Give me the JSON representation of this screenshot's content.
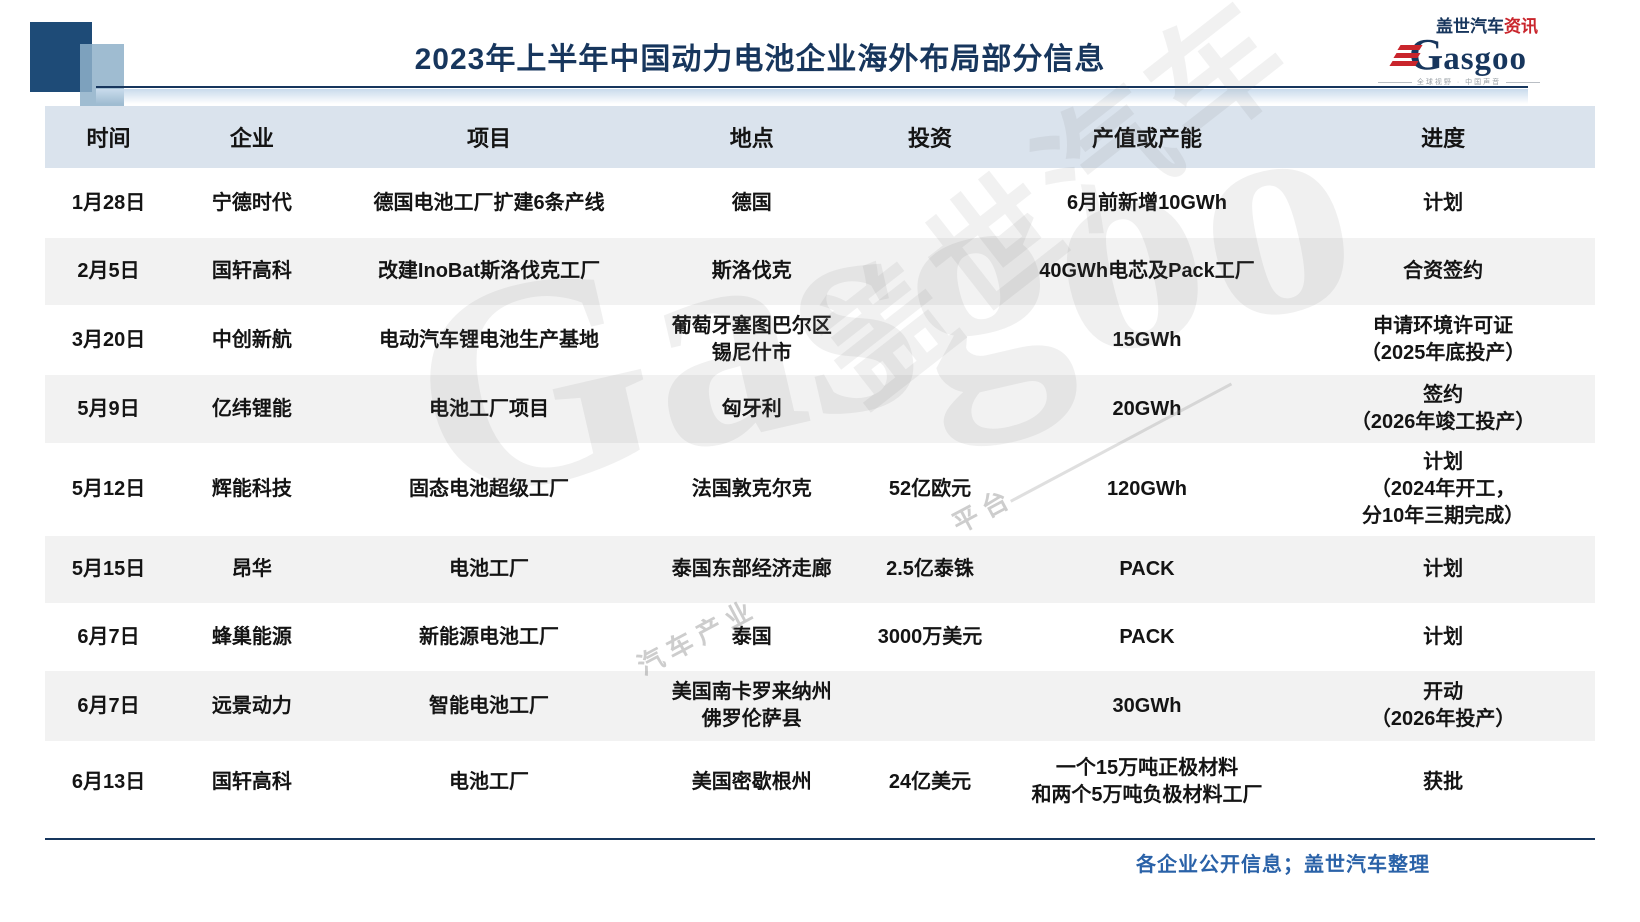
{
  "title": "2023年上半年中国动力电池企业海外布局部分信息",
  "logo": {
    "brand_cn_blue": "盖世汽车",
    "brand_cn_red": "资讯",
    "brand_g": "G",
    "brand_en": "asgoo",
    "tagline": "全球视野 · 中国声音"
  },
  "watermark": {
    "text_en": "Gasgoo",
    "text_cn": "盖世汽车",
    "fragment1": "汽车产业",
    "fragment2": "平台"
  },
  "colors": {
    "title_navy": "#17365D",
    "header_bg": "#DAE3ED",
    "stripe_gray": "#F2F2F2",
    "accent_red": "#C9252C",
    "footer_blue": "#2A62A8"
  },
  "table": {
    "columns": [
      "时间",
      "企业",
      "项目",
      "地点",
      "投资",
      "产值或产能",
      "进度"
    ],
    "rows": [
      {
        "time": "1月28日",
        "company": "宁德时代",
        "project": "德国电池工厂扩建6条产线",
        "location": "德国",
        "investment": "",
        "capacity": "6月前新增10GWh",
        "progress": "计划"
      },
      {
        "time": "2月5日",
        "company": "国轩高科",
        "project": "改建InoBat斯洛伐克工厂",
        "location": "斯洛伐克",
        "investment": "",
        "capacity": "40GWh电芯及Pack工厂",
        "progress": "合资签约"
      },
      {
        "time": "3月20日",
        "company": "中创新航",
        "project": "电动汽车锂电池生产基地",
        "location": "葡萄牙塞图巴尔区\n锡尼什市",
        "investment": "",
        "capacity": "15GWh",
        "progress": "申请环境许可证\n（2025年底投产）"
      },
      {
        "time": "5月9日",
        "company": "亿纬锂能",
        "project": "电池工厂项目",
        "location": "匈牙利",
        "investment": "",
        "capacity": "20GWh",
        "progress": "签约\n（2026年竣工投产）"
      },
      {
        "time": "5月12日",
        "company": "辉能科技",
        "project": "固态电池超级工厂",
        "location": "法国敦克尔克",
        "investment": "52亿欧元",
        "capacity": "120GWh",
        "progress": "计划\n（2024年开工，\n分10年三期完成）"
      },
      {
        "time": "5月15日",
        "company": "昂华",
        "project": "电池工厂",
        "location": "泰国东部经济走廊",
        "investment": "2.5亿泰铢",
        "capacity": "PACK",
        "progress": "计划"
      },
      {
        "time": "6月7日",
        "company": "蜂巢能源",
        "project": "新能源电池工厂",
        "location": "泰国",
        "investment": "3000万美元",
        "capacity": "PACK",
        "progress": "计划"
      },
      {
        "time": "6月7日",
        "company": "远景动力",
        "project": "智能电池工厂",
        "location": "美国南卡罗来纳州\n佛罗伦萨县",
        "investment": "",
        "capacity": "30GWh",
        "progress": "开动\n（2026年投产）"
      },
      {
        "time": "6月13日",
        "company": "国轩高科",
        "project": "电池工厂",
        "location": "美国密歇根州",
        "investment": "24亿美元",
        "capacity": "一个15万吨正极材料\n和两个5万吨负极材料工厂",
        "progress": "获批"
      }
    ]
  },
  "footer": {
    "source_note": "各企业公开信息；盖世汽车整理"
  }
}
